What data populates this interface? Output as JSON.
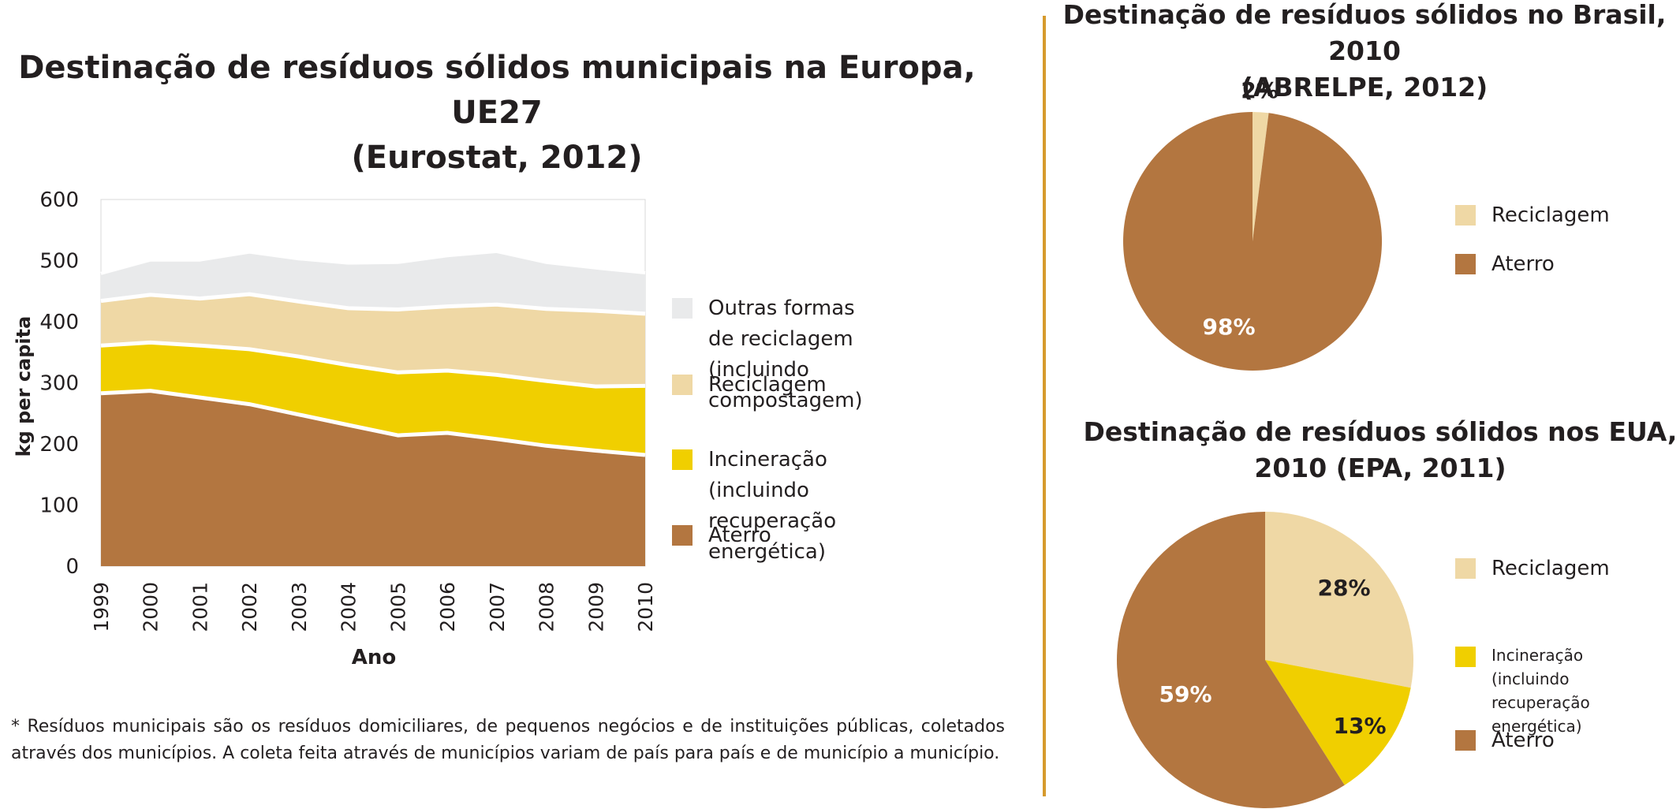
{
  "colors": {
    "aterro": "#b37640",
    "incineracao": "#f0cf00",
    "reciclagem": "#efd8a5",
    "outras": "#e9eaeb",
    "divider": "#d69a2d"
  },
  "europe": {
    "title_line1": "Destinação de resíduos sólidos municipais na Europa, UE27",
    "title_line2": "(Eurostat, 2012)",
    "legend": [
      {
        "label": "Outras formas de reciclagem\n(incluindo compostagem)",
        "color_key": "outras"
      },
      {
        "label": "Reciclagem",
        "color_key": "reciclagem"
      },
      {
        "label": "Incineração (incluindo\nrecuperação energética)",
        "color_key": "incineracao"
      },
      {
        "label": "Aterro",
        "color_key": "aterro"
      }
    ]
  },
  "brasil": {
    "title_line1": "Destinação de resíduos sólidos no Brasil, 2010",
    "title_line2": "(ABRELPE, 2012)",
    "legend": [
      {
        "label": "Reciclagem",
        "color_key": "reciclagem"
      },
      {
        "label": "Aterro",
        "color_key": "aterro"
      }
    ]
  },
  "eua": {
    "title_line1": "Destinação de resíduos sólidos nos EUA,",
    "title_line2": "2010 (EPA, 2011)",
    "legend": [
      {
        "label": "Reciclagem",
        "color_key": "reciclagem"
      },
      {
        "label": "Incineração (incluindo\nrecuperação energética)",
        "color_key": "incineracao"
      },
      {
        "label": "Aterro",
        "color_key": "aterro"
      }
    ]
  },
  "footnote": "* Resíduos municipais são os resíduos domiciliares, de pequenos negócios e de instituições públicas, coletados através dos municípios. A coleta feita através de municípios variam de país para país e de município a município.",
  "chart_data": [
    {
      "type": "area",
      "title": "Destinação de resíduos sólidos municipais na Europa, UE27 (Eurostat, 2012)",
      "xlabel": "Ano",
      "ylabel": "kg per capita",
      "ylim": [
        0,
        600
      ],
      "yticks": [
        "0",
        "100",
        "200",
        "300",
        "400",
        "500",
        "600"
      ],
      "x": [
        "1999",
        "2000",
        "2001",
        "2002",
        "2003",
        "2004",
        "2005",
        "2006",
        "2007",
        "2008",
        "2009",
        "2010"
      ],
      "stacked": true,
      "grid": false,
      "legend_position": "right",
      "series": [
        {
          "name": "Aterro",
          "color_key": "aterro",
          "values": [
            283,
            287,
            276,
            265,
            248,
            231,
            214,
            218,
            208,
            197,
            189,
            182
          ]
        },
        {
          "name": "Incineração (incluindo recuperação energética)",
          "color_key": "incineracao",
          "values": [
            78,
            79,
            85,
            90,
            95,
            98,
            103,
            102,
            105,
            106,
            105,
            113
          ]
        },
        {
          "name": "Reciclagem",
          "color_key": "reciclagem",
          "values": [
            73,
            78,
            77,
            90,
            90,
            93,
            103,
            105,
            115,
            118,
            124,
            118
          ]
        },
        {
          "name": "Outras formas de reciclagem (incluindo compostagem)",
          "color_key": "outras",
          "values": [
            45,
            57,
            63,
            69,
            70,
            74,
            77,
            83,
            87,
            76,
            70,
            67
          ]
        }
      ]
    },
    {
      "type": "pie",
      "title": "Destinação de resíduos sólidos no Brasil, 2010 (ABRELPE, 2012)",
      "legend_position": "right",
      "slices": [
        {
          "name": "Reciclagem",
          "value": 2,
          "label": "2%",
          "color_key": "reciclagem"
        },
        {
          "name": "Aterro",
          "value": 98,
          "label": "98%",
          "color_key": "aterro"
        }
      ]
    },
    {
      "type": "pie",
      "title": "Destinação de resíduos sólidos nos EUA, 2010 (EPA, 2011)",
      "legend_position": "right",
      "slices": [
        {
          "name": "Reciclagem",
          "value": 28,
          "label": "28%",
          "color_key": "reciclagem"
        },
        {
          "name": "Incineração (incluindo recuperação energética)",
          "value": 13,
          "label": "13%",
          "color_key": "incineracao"
        },
        {
          "name": "Aterro",
          "value": 59,
          "label": "59%",
          "color_key": "aterro"
        }
      ]
    }
  ]
}
